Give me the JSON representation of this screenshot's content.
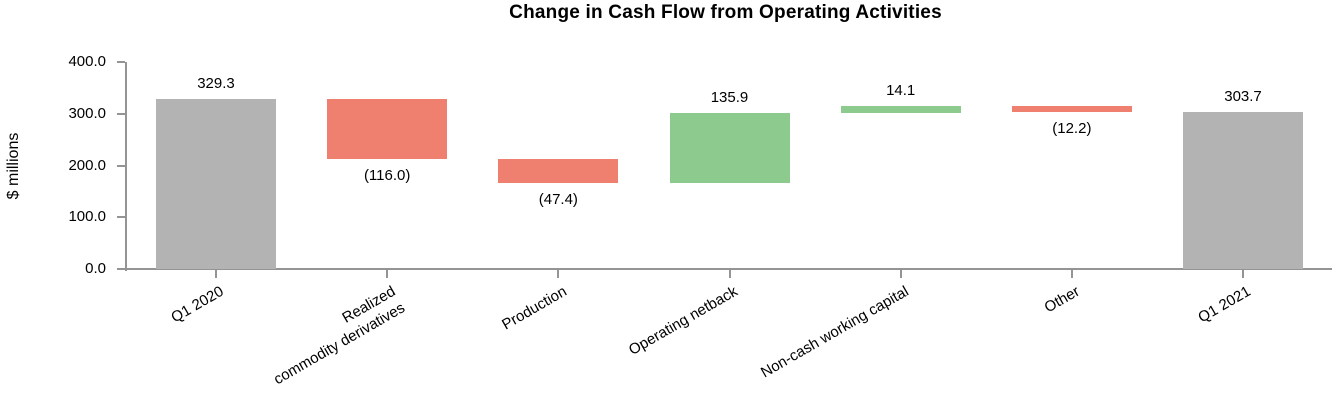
{
  "chart_data": {
    "type": "bar",
    "subtype": "waterfall",
    "title": "Change in Cash Flow from Operating Activities",
    "ylabel": "$ millions",
    "xlabel": "",
    "ylim": [
      0,
      400
    ],
    "yticks": [
      0,
      100,
      200,
      300,
      400
    ],
    "ytick_labels": [
      "0.0",
      "100.0",
      "200.0",
      "300.0",
      "400.0"
    ],
    "grid": false,
    "legend": false,
    "categories": [
      "Q1 2020",
      "Realized\ncommodity derivatives",
      "Production",
      "Operating netback",
      "Non-cash working capital",
      "Other",
      "Q1 2021"
    ],
    "bars": [
      {
        "category": "Q1 2020",
        "value": 329.3,
        "role": "total",
        "data_label": "329.3",
        "label_position": "above"
      },
      {
        "category": "Realized\ncommodity derivatives",
        "value": -116.0,
        "role": "decrease",
        "data_label": "(116.0)",
        "label_position": "below"
      },
      {
        "category": "Production",
        "value": -47.4,
        "role": "decrease",
        "data_label": "(47.4)",
        "label_position": "below"
      },
      {
        "category": "Operating netback",
        "value": 135.9,
        "role": "increase",
        "data_label": "135.9",
        "label_position": "above"
      },
      {
        "category": "Non-cash working capital",
        "value": 14.1,
        "role": "increase",
        "data_label": "14.1",
        "label_position": "above"
      },
      {
        "category": "Other",
        "value": -12.2,
        "role": "decrease",
        "data_label": "(12.2)",
        "label_position": "below"
      },
      {
        "category": "Q1 2021",
        "value": 303.7,
        "role": "total",
        "data_label": "303.7",
        "label_position": "above"
      }
    ],
    "colors": {
      "total": "#b3b3b3",
      "increase": "#8dca8d",
      "decrease": "#ef7f6e",
      "axis": "#949494",
      "text": "#000000"
    }
  }
}
